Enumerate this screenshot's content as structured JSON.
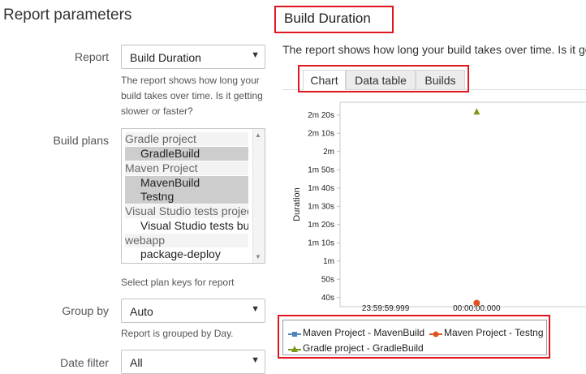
{
  "left_panel": {
    "title": "Report parameters",
    "report": {
      "label": "Report",
      "value": "Build Duration",
      "help_lines": [
        "The report shows how long your",
        "build takes over time. Is it getting",
        "slower or faster?"
      ]
    },
    "build_plans": {
      "label": "Build plans",
      "rows": [
        {
          "text": "Gradle project",
          "kind": "group",
          "selected": false
        },
        {
          "text": "GradleBuild",
          "kind": "option",
          "selected": true
        },
        {
          "text": "Maven Project",
          "kind": "group",
          "selected": false
        },
        {
          "text": "MavenBuild",
          "kind": "option",
          "selected": true
        },
        {
          "text": "Testng",
          "kind": "option",
          "selected": true
        },
        {
          "text": "Visual Studio tests project",
          "kind": "group",
          "selected": false
        },
        {
          "text": "Visual Studio tests build",
          "kind": "option",
          "selected": false
        },
        {
          "text": "webapp",
          "kind": "group",
          "selected": false
        },
        {
          "text": "package-deploy",
          "kind": "option",
          "selected": false
        }
      ],
      "help": "Select plan keys for report"
    },
    "group_by": {
      "label": "Group by",
      "value": "Auto",
      "help": "Report is grouped by Day."
    },
    "date_filter": {
      "label": "Date filter",
      "value": "All"
    }
  },
  "main": {
    "title": "Build Duration",
    "description": "The report shows how long your build takes over time. Is it ge",
    "tabs": [
      {
        "label": "Chart",
        "active": true
      },
      {
        "label": "Data table",
        "active": false
      },
      {
        "label": "Builds",
        "active": false
      }
    ]
  },
  "colors": {
    "highlight": "#e0161f",
    "maven_build": "#4f81bd",
    "testng": "#e0531f",
    "gradle_build": "#7a9a1a"
  },
  "icons": {
    "dropdown": "caret-down-icon",
    "scroll_up": "scroll-up-icon",
    "scroll_down": "scroll-down-icon"
  },
  "chart_data": {
    "type": "scatter",
    "ylabel": "Duration",
    "xlabel": "",
    "y_tick_labels": [
      "40s",
      "50s",
      "1m",
      "1m 10s",
      "1m 20s",
      "1m 30s",
      "1m 40s",
      "1m 50s",
      "2m",
      "2m 10s",
      "2m 20s"
    ],
    "y_tick_seconds": [
      40,
      50,
      60,
      70,
      80,
      90,
      100,
      110,
      120,
      130,
      140
    ],
    "ylim": [
      35,
      147
    ],
    "x_tick_labels": [
      "23:59:59.999",
      "00:00:00.000"
    ],
    "x_ticks": [
      -0.001,
      0
    ],
    "xlim": [
      -0.0015,
      0.0012
    ],
    "legend_position": "bottom",
    "series": [
      {
        "name": "Maven Project - MavenBuild",
        "marker": "square",
        "points": []
      },
      {
        "name": "Maven Project - Testng",
        "marker": "circle",
        "points": [
          {
            "x": 0,
            "y": 37
          }
        ]
      },
      {
        "name": "Gradle project - GradleBuild",
        "marker": "triangle",
        "points": [
          {
            "x": 0,
            "y": 142
          }
        ]
      }
    ]
  }
}
